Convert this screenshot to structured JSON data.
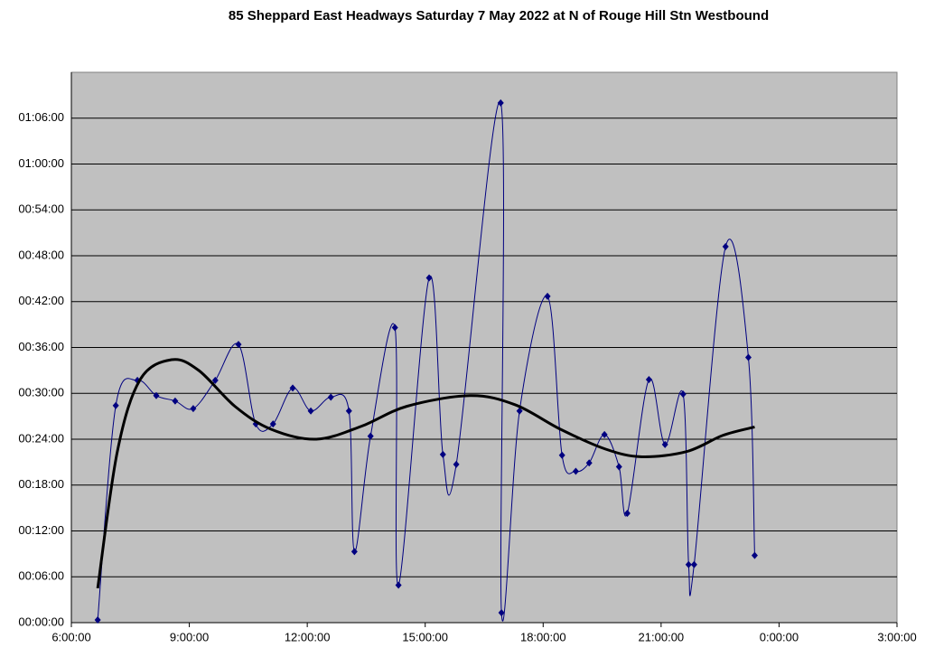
{
  "chart_data": {
    "type": "line",
    "title": "85 Sheppard East Headways Saturday 7 May 2022 at N of Rouge Hill Stn Westbound",
    "xlim": [
      6,
      27
    ],
    "xticks": [
      {
        "value": 6,
        "label": "6:00:00"
      },
      {
        "value": 9,
        "label": "9:00:00"
      },
      {
        "value": 12,
        "label": "12:00:00"
      },
      {
        "value": 15,
        "label": "15:00:00"
      },
      {
        "value": 18,
        "label": "18:00:00"
      },
      {
        "value": 21,
        "label": "21:00:00"
      },
      {
        "value": 24,
        "label": "0:00:00"
      },
      {
        "value": 27,
        "label": "3:00:00"
      }
    ],
    "ylim": [
      0,
      72
    ],
    "yticks": [
      {
        "value": 0,
        "label": "00:00:00"
      },
      {
        "value": 6,
        "label": "00:06:00"
      },
      {
        "value": 12,
        "label": "00:12:00"
      },
      {
        "value": 18,
        "label": "00:18:00"
      },
      {
        "value": 24,
        "label": "00:24:00"
      },
      {
        "value": 30,
        "label": "00:30:00"
      },
      {
        "value": 36,
        "label": "00:36:00"
      },
      {
        "value": 42,
        "label": "00:42:00"
      },
      {
        "value": 48,
        "label": "00:48:00"
      },
      {
        "value": 54,
        "label": "00:54:00"
      },
      {
        "value": 60,
        "label": "01:00:00"
      },
      {
        "value": 66,
        "label": "01:06:00"
      }
    ],
    "grid": true,
    "background": "#c0c0c0",
    "series": [
      {
        "color": "#000080",
        "markers": true,
        "smooth": true,
        "width": 1,
        "x": [
          6.67,
          7.13,
          7.68,
          8.16,
          8.64,
          9.1,
          9.66,
          10.25,
          10.69,
          11.13,
          11.63,
          12.09,
          12.6,
          13.06,
          13.2,
          13.61,
          14.23,
          14.32,
          15.1,
          15.45,
          15.79,
          16.92,
          16.94,
          17.4,
          18.11,
          18.48,
          18.83,
          19.17,
          19.56,
          19.93,
          20.14,
          20.69,
          21.1,
          21.56,
          21.7,
          21.84,
          22.64,
          23.22,
          23.38
        ],
        "values": [
          0.35,
          28.4,
          31.7,
          29.7,
          29.0,
          28.0,
          31.7,
          36.4,
          26.0,
          26.0,
          30.7,
          27.7,
          29.5,
          27.7,
          9.3,
          24.4,
          38.6,
          4.9,
          45.1,
          22.0,
          20.7,
          68.0,
          1.3,
          27.7,
          42.7,
          21.9,
          19.8,
          20.9,
          24.6,
          20.4,
          14.3,
          31.8,
          23.3,
          29.9,
          7.6,
          7.6,
          49.2,
          34.7,
          8.8
        ]
      },
      {
        "color": "#000000",
        "markers": false,
        "smooth": true,
        "width": 3,
        "x": [
          6.67,
          7.17,
          7.75,
          8.55,
          9.24,
          10.16,
          11.08,
          12.23,
          13.38,
          14.53,
          16.14,
          17.29,
          18.44,
          19.59,
          20.51,
          21.66,
          22.57,
          23.38
        ],
        "values": [
          4.5,
          22.4,
          31.8,
          34.4,
          33.0,
          28.3,
          25.3,
          24.0,
          25.7,
          28.3,
          29.7,
          28.5,
          25.3,
          22.7,
          21.7,
          22.4,
          24.5,
          25.6
        ]
      }
    ]
  }
}
